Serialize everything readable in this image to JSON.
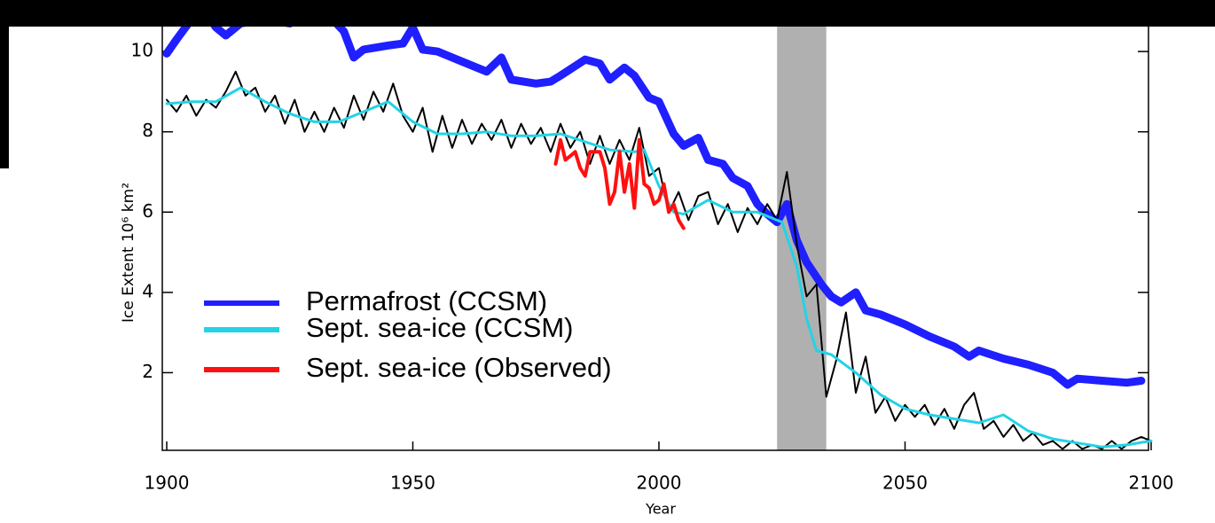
{
  "chart_data": {
    "type": "line",
    "xlabel": "Year",
    "ylabel": "Ice Extent 10⁶ km²",
    "xlim": [
      1900,
      2100
    ],
    "xticks": [
      1900,
      1950,
      2000,
      2050,
      2100
    ],
    "ylim": [
      0,
      10.4
    ],
    "yticks": [
      2,
      4,
      6,
      8,
      10
    ],
    "shaded_region": [
      2024,
      2034
    ],
    "shade_color": "#b0b0b0",
    "series": [
      {
        "name": "Permafrost (CCSM)",
        "color": "#1f1fff",
        "width": 9,
        "x": [
          1900,
          1902,
          1905,
          1908,
          1910,
          1912,
          1915,
          1920,
          1925,
          1930,
          1933,
          1936,
          1938,
          1940,
          1945,
          1948,
          1950,
          1952,
          1955,
          1960,
          1965,
          1968,
          1970,
          1975,
          1978,
          1980,
          1985,
          1988,
          1990,
          1993,
          1995,
          1998,
          2000,
          2003,
          2005,
          2008,
          2010,
          2013,
          2015,
          2018,
          2020,
          2022,
          2024,
          2026,
          2028,
          2030,
          2033,
          2035,
          2037,
          2040,
          2042,
          2045,
          2050,
          2055,
          2060,
          2063,
          2065,
          2070,
          2075,
          2080,
          2083,
          2085,
          2090,
          2095,
          2098
        ],
        "values": [
          9.95,
          10.3,
          10.8,
          10.95,
          10.6,
          10.4,
          10.7,
          10.8,
          10.7,
          10.95,
          10.9,
          10.5,
          9.85,
          10.05,
          10.15,
          10.2,
          10.6,
          10.05,
          10.0,
          9.75,
          9.5,
          9.85,
          9.3,
          9.2,
          9.25,
          9.4,
          9.8,
          9.7,
          9.3,
          9.6,
          9.4,
          8.85,
          8.75,
          7.95,
          7.65,
          7.85,
          7.3,
          7.2,
          6.85,
          6.65,
          6.2,
          5.95,
          5.75,
          6.2,
          5.3,
          4.75,
          4.2,
          3.9,
          3.75,
          4.0,
          3.55,
          3.45,
          3.2,
          2.9,
          2.65,
          2.4,
          2.55,
          2.35,
          2.2,
          2.0,
          1.7,
          1.85,
          1.8,
          1.75,
          1.8
        ]
      },
      {
        "color": "#000000",
        "width": 2,
        "x": [
          1900,
          1902,
          1904,
          1906,
          1908,
          1910,
          1912,
          1914,
          1916,
          1918,
          1920,
          1922,
          1924,
          1926,
          1928,
          1930,
          1932,
          1934,
          1936,
          1938,
          1940,
          1942,
          1944,
          1946,
          1948,
          1950,
          1952,
          1954,
          1956,
          1958,
          1960,
          1962,
          1964,
          1966,
          1968,
          1970,
          1972,
          1974,
          1976,
          1978,
          1980,
          1982,
          1984,
          1986,
          1988,
          1990,
          1992,
          1994,
          1996,
          1998,
          2000,
          2002,
          2004,
          2006,
          2008,
          2010,
          2012,
          2014,
          2016,
          2018,
          2020,
          2022,
          2024,
          2026,
          2028,
          2030,
          2032,
          2034,
          2036,
          2038,
          2040,
          2042,
          2044,
          2046,
          2048,
          2050,
          2052,
          2054,
          2056,
          2058,
          2060,
          2062,
          2064,
          2066,
          2068,
          2070,
          2072,
          2074,
          2076,
          2078,
          2080,
          2082,
          2084,
          2086,
          2088,
          2090,
          2092,
          2094,
          2096,
          2098,
          2100
        ],
        "values": [
          8.8,
          8.5,
          8.9,
          8.4,
          8.8,
          8.6,
          9.0,
          9.5,
          8.9,
          9.1,
          8.5,
          8.9,
          8.2,
          8.8,
          8.0,
          8.5,
          8.0,
          8.6,
          8.1,
          8.9,
          8.3,
          9.0,
          8.5,
          9.2,
          8.4,
          8.0,
          8.6,
          7.5,
          8.4,
          7.6,
          8.3,
          7.7,
          8.2,
          7.8,
          8.3,
          7.6,
          8.2,
          7.7,
          8.1,
          7.5,
          8.2,
          7.6,
          8.0,
          7.2,
          7.9,
          7.2,
          7.8,
          7.3,
          8.1,
          6.9,
          7.1,
          6.0,
          6.5,
          5.8,
          6.4,
          6.5,
          5.7,
          6.2,
          5.5,
          6.1,
          5.7,
          6.2,
          5.8,
          7.0,
          5.2,
          3.9,
          4.2,
          1.4,
          2.3,
          3.5,
          1.5,
          2.4,
          1.0,
          1.4,
          0.8,
          1.2,
          0.9,
          1.2,
          0.7,
          1.1,
          0.6,
          1.2,
          1.5,
          0.6,
          0.8,
          0.4,
          0.7,
          0.3,
          0.5,
          0.2,
          0.3,
          0.1,
          0.3,
          0.1,
          0.2,
          0.1,
          0.3,
          0.1,
          0.3,
          0.4,
          0.3
        ]
      },
      {
        "name": "Sept. sea-ice (CCSM)",
        "color": "#22d3e6",
        "width": 3,
        "x": [
          1900,
          1905,
          1910,
          1915,
          1920,
          1925,
          1930,
          1935,
          1940,
          1945,
          1950,
          1955,
          1960,
          1965,
          1970,
          1975,
          1980,
          1985,
          1990,
          1995,
          1997,
          2000,
          2003,
          2005,
          2010,
          2015,
          2020,
          2025,
          2028,
          2030,
          2032,
          2035,
          2040,
          2045,
          2050,
          2055,
          2060,
          2065,
          2070,
          2075,
          2080,
          2085,
          2090,
          2095,
          2100
        ],
        "values": [
          8.7,
          8.75,
          8.75,
          9.1,
          8.75,
          8.45,
          8.25,
          8.25,
          8.5,
          8.75,
          8.25,
          7.95,
          7.95,
          8.0,
          7.9,
          7.9,
          7.95,
          7.75,
          7.55,
          7.5,
          7.55,
          6.65,
          6.0,
          5.95,
          6.3,
          6.0,
          6.0,
          5.75,
          4.65,
          3.35,
          2.55,
          2.45,
          2.0,
          1.45,
          1.1,
          0.95,
          0.85,
          0.75,
          0.95,
          0.55,
          0.35,
          0.25,
          0.15,
          0.2,
          0.3
        ]
      },
      {
        "name": "Sept. sea-ice (Observed)",
        "color": "#ff1010",
        "width": 4,
        "x": [
          1979,
          1980,
          1981,
          1982,
          1983,
          1984,
          1985,
          1986,
          1987,
          1988,
          1989,
          1990,
          1991,
          1992,
          1993,
          1994,
          1995,
          1996,
          1997,
          1998,
          1999,
          2000,
          2001,
          2002,
          2003,
          2004,
          2005
        ],
        "values": [
          7.2,
          7.8,
          7.3,
          7.4,
          7.5,
          7.1,
          6.9,
          7.5,
          7.5,
          7.5,
          7.1,
          6.2,
          6.5,
          7.5,
          6.5,
          7.2,
          6.1,
          7.8,
          6.7,
          6.6,
          6.2,
          6.3,
          6.7,
          6.0,
          6.2,
          5.8,
          5.6
        ]
      }
    ]
  }
}
